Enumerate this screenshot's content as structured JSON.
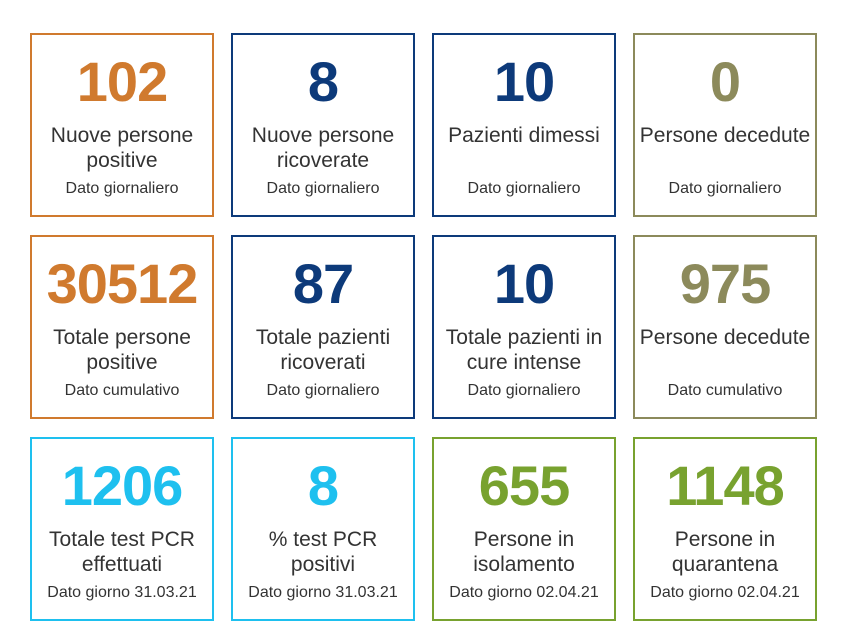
{
  "colors": {
    "orange": "#d07a2e",
    "navy": "#0d3a7a",
    "olive": "#8c8a5b",
    "cyan": "#1ec0ef",
    "green": "#78a22f"
  },
  "cards": [
    {
      "value": "102",
      "label": "Nuove persone positive",
      "sub": "Dato giornaliero",
      "color": "#d07a2e"
    },
    {
      "value": "8",
      "label": "Nuove persone ricoverate",
      "sub": "Dato giornaliero",
      "color": "#0d3a7a"
    },
    {
      "value": "10",
      "label": "Pazienti dimessi",
      "sub": "Dato giornaliero",
      "color": "#0d3a7a"
    },
    {
      "value": "0",
      "label": "Persone decedute",
      "sub": "Dato giornaliero",
      "color": "#8c8a5b"
    },
    {
      "value": "30512",
      "label": "Totale persone positive",
      "sub": "Dato cumulativo",
      "color": "#d07a2e"
    },
    {
      "value": "87",
      "label": "Totale pazienti ricoverati",
      "sub": "Dato giornaliero",
      "color": "#0d3a7a"
    },
    {
      "value": "10",
      "label": "Totale pazienti in cure intense",
      "sub": "Dato giornaliero",
      "color": "#0d3a7a"
    },
    {
      "value": "975",
      "label": "Persone decedute",
      "sub": "Dato cumulativo",
      "color": "#8c8a5b"
    },
    {
      "value": "1206",
      "label": "Totale test PCR effettuati",
      "sub": "Dato giorno 31.03.21",
      "color": "#1ec0ef"
    },
    {
      "value": "8",
      "label": "% test PCR positivi",
      "sub": "Dato giorno 31.03.21",
      "color": "#1ec0ef"
    },
    {
      "value": "655",
      "label": "Persone in isolamento",
      "sub": "Dato giorno 02.04.21",
      "color": "#78a22f"
    },
    {
      "value": "1148",
      "label": "Persone in quarantena",
      "sub": "Dato giorno 02.04.21",
      "color": "#78a22f"
    }
  ]
}
